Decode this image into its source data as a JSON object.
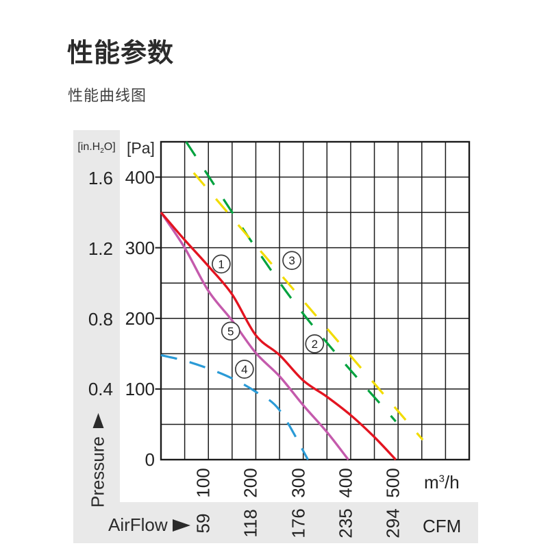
{
  "page": {
    "title": "性能参数",
    "subtitle": "性能曲线图"
  },
  "y_axis": {
    "secondary_unit_pre": "[in.H",
    "secondary_unit_sub": "2",
    "secondary_unit_post": "O]",
    "primary_unit": "[Pa]",
    "axis_label": "Pressure",
    "pa_ticks": [
      "400",
      "300",
      "200",
      "100",
      "0"
    ],
    "inh2o_ticks": [
      "1.6",
      "1.2",
      "0.8",
      "0.4"
    ]
  },
  "x_axis": {
    "axis_label": "AirFlow",
    "primary_unit_pre": "m",
    "primary_unit_sup": "3",
    "primary_unit_post": "/h",
    "secondary_unit": "CFM",
    "flow_ticks": [
      "100",
      "200",
      "300",
      "400",
      "500"
    ],
    "cfm_ticks": [
      "59",
      "118",
      "176",
      "235",
      "294"
    ]
  },
  "colors": {
    "panel_gray": "#e9e9e9",
    "grid_black": "#1a1a1a",
    "curve_red": "#e31420",
    "curve_magenta": "#c45aac",
    "curve_green": "#00a23e",
    "curve_yellow": "#f2dc00",
    "curve_blue": "#2a9ad6",
    "text_dark": "#2b2b2b"
  },
  "chart_data": {
    "type": "line",
    "title": "性能曲线图",
    "xlabel": "AirFlow (m³/h, CFM)",
    "ylabel": "Pressure (Pa, in.H₂O)",
    "xlim": [
      0,
      650
    ],
    "ylim": [
      0,
      450
    ],
    "x_gridline_step": 50,
    "y_gridline_step": 50,
    "grid": true,
    "legend_position": "none",
    "pa_tick_values": [
      400,
      300,
      200,
      100,
      0
    ],
    "inh2o_tick_values": [
      1.6,
      1.2,
      0.8,
      0.4
    ],
    "flow_tick_values": [
      100,
      200,
      300,
      400,
      500
    ],
    "cfm_tick_values": [
      59,
      118,
      176,
      235,
      294
    ],
    "series": [
      {
        "name": "3",
        "color": "#00a23e",
        "style": "dashed",
        "dash": "25 25",
        "width": 3.2,
        "points": [
          [
            53,
            450
          ],
          [
            274,
            229
          ],
          [
            495,
            54
          ]
        ]
      },
      {
        "name": "2",
        "color": "#f2dc00",
        "style": "dashed",
        "dash": "25 25",
        "width": 3.2,
        "points": [
          [
            69,
            406
          ],
          [
            310,
            217
          ],
          [
            552,
            28
          ]
        ]
      },
      {
        "name": "4",
        "color": "#2a9ad6",
        "style": "dashed",
        "dash": "24 19",
        "width": 3.2,
        "points": [
          [
            0,
            148
          ],
          [
            50,
            140
          ],
          [
            100,
            129
          ],
          [
            150,
            115
          ],
          [
            200,
            96
          ],
          [
            250,
            70
          ],
          [
            310,
            0
          ]
        ]
      },
      {
        "name": "5",
        "color": "#c45aac",
        "style": "solid",
        "dash": "",
        "width": 3.4,
        "points": [
          [
            0,
            350
          ],
          [
            50,
            300
          ],
          [
            100,
            239
          ],
          [
            150,
            197
          ],
          [
            200,
            151
          ],
          [
            250,
            118
          ],
          [
            300,
            77
          ],
          [
            350,
            39
          ],
          [
            395,
            0
          ]
        ]
      },
      {
        "name": "1",
        "color": "#e31420",
        "style": "solid",
        "dash": "",
        "width": 3.4,
        "points": [
          [
            0,
            350
          ],
          [
            50,
            311
          ],
          [
            100,
            274
          ],
          [
            150,
            234
          ],
          [
            200,
            176
          ],
          [
            250,
            148
          ],
          [
            300,
            112
          ],
          [
            350,
            89
          ],
          [
            400,
            63
          ],
          [
            450,
            32
          ],
          [
            495,
            0
          ]
        ]
      }
    ],
    "curve_labels": [
      {
        "text": "1",
        "flow": 127,
        "pa": 277
      },
      {
        "text": "3",
        "flow": 276,
        "pa": 282
      },
      {
        "text": "5",
        "flow": 147,
        "pa": 182
      },
      {
        "text": "2",
        "flow": 324,
        "pa": 164
      },
      {
        "text": "4",
        "flow": 176,
        "pa": 128
      }
    ]
  }
}
